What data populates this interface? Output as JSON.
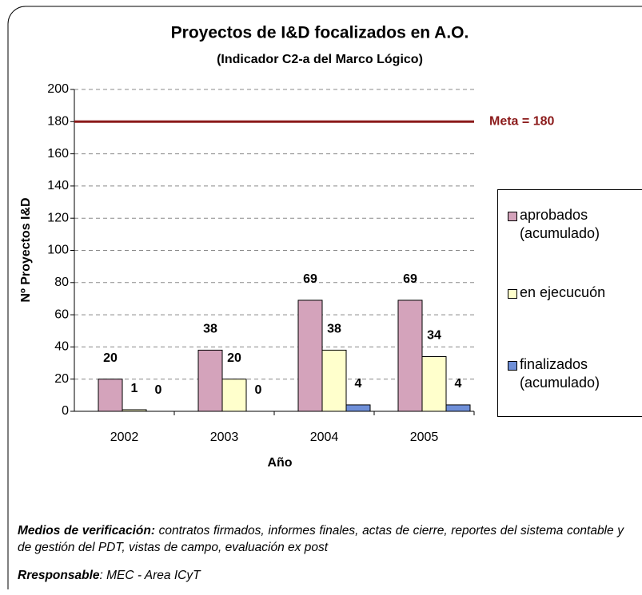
{
  "chart_data": {
    "type": "bar",
    "title": "Proyectos de I&D focalizados en A.O.",
    "subtitle": "(Indicador C2-a del Marco Lógico)",
    "x_label": "Año",
    "y_label": "Nº Proyectos I&D",
    "categories": [
      "2002",
      "2003",
      "2004",
      "2005"
    ],
    "series": [
      {
        "name": "aprobados (acumulado)",
        "color": "#d4a3bb",
        "values": [
          20,
          38,
          69,
          69
        ]
      },
      {
        "name": "en ejecucuón",
        "color": "#ffffcc",
        "values": [
          1,
          20,
          38,
          34
        ]
      },
      {
        "name": "finalizados (acumulado)",
        "color": "#6f8fd8",
        "values": [
          0,
          0,
          4,
          4
        ]
      }
    ],
    "ylim": [
      0,
      200
    ],
    "yticks": [
      0,
      20,
      40,
      60,
      80,
      100,
      120,
      140,
      160,
      180,
      200
    ],
    "grid": true,
    "legend": "right",
    "meta": {
      "value": 180,
      "label": "Meta = 180",
      "color": "#8b1a1a"
    },
    "notes": [
      {
        "label": "Medios de verificación:",
        "text": "contratos firmados, informes finales, actas de cierre, reportes del sistema contable y de gestión del PDT, vistas de campo, evaluación ex post"
      },
      {
        "label": "Rresponsable",
        "text": ": MEC - Area ICyT"
      }
    ]
  }
}
